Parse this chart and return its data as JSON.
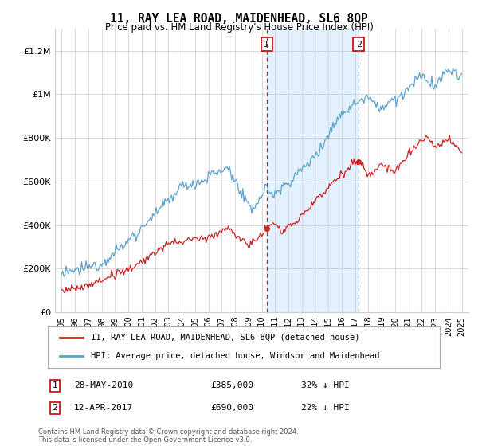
{
  "title": "11, RAY LEA ROAD, MAIDENHEAD, SL6 8QP",
  "subtitle": "Price paid vs. HM Land Registry's House Price Index (HPI)",
  "footer": "Contains HM Land Registry data © Crown copyright and database right 2024.\nThis data is licensed under the Open Government Licence v3.0.",
  "legend_line1": "11, RAY LEA ROAD, MAIDENHEAD, SL6 8QP (detached house)",
  "legend_line2": "HPI: Average price, detached house, Windsor and Maidenhead",
  "annotation1_label": "1",
  "annotation1_date": "28-MAY-2010",
  "annotation1_price": "£385,000",
  "annotation1_hpi": "32% ↓ HPI",
  "annotation1_year": 2010.37,
  "annotation1_value": 385000,
  "annotation2_label": "2",
  "annotation2_date": "12-APR-2017",
  "annotation2_price": "£690,000",
  "annotation2_hpi": "22% ↓ HPI",
  "annotation2_year": 2017.27,
  "annotation2_value": 690000,
  "ylim": [
    0,
    1300000
  ],
  "yticks": [
    0,
    200000,
    400000,
    600000,
    800000,
    1000000,
    1200000
  ],
  "ytick_labels": [
    "£0",
    "£200K",
    "£400K",
    "£600K",
    "£800K",
    "£1M",
    "£1.2M"
  ],
  "hpi_color": "#5ba3d0",
  "price_color": "#cc2222",
  "shade_color": "#ddeeff",
  "vline1_color": "#cc2222",
  "vline2_color": "#aaaaaa",
  "grid_color": "#cccccc",
  "bg_color": "#ffffff",
  "box_color": "#cc0000"
}
